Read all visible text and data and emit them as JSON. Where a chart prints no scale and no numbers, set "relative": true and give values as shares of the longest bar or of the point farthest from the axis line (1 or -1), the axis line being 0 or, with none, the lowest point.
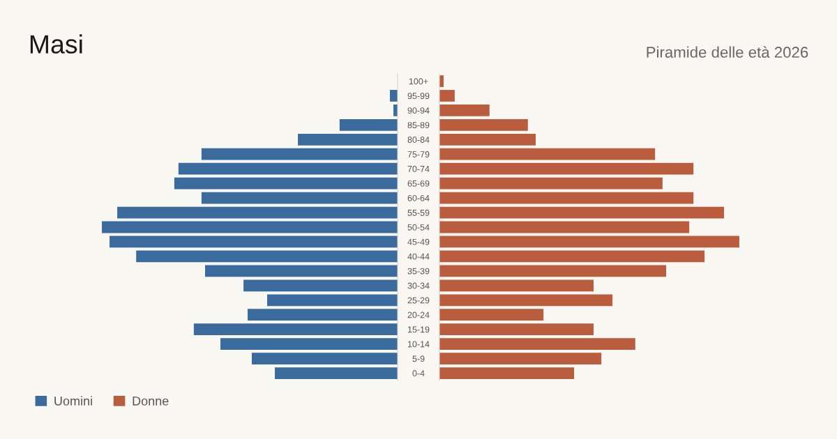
{
  "chart_data": [
    {
      "type": "bar",
      "orientation": "horizontal",
      "relative": true,
      "title": "Masi",
      "legend": "bottom left",
      "categories": [
        "100+",
        "95-99",
        "90-94",
        "85-89",
        "80-84",
        "75-79",
        "70-74",
        "65-69",
        "60-64",
        "55-59",
        "50-54",
        "45-49",
        "40-44",
        "35-39",
        "30-34",
        "25-29",
        "20-24",
        "15-19",
        "10-14",
        "5-9",
        "0-4"
      ],
      "series": [
        {
          "name": "Uomini",
          "color": "#3a6b9c",
          "values": [
            0,
            -0.026,
            -0.014,
            -0.196,
            -0.337,
            -0.663,
            -0.741,
            -0.755,
            -0.663,
            -0.948,
            -1,
            -0.974,
            -0.884,
            -0.651,
            -0.521,
            -0.441,
            -0.507,
            -0.689,
            -0.599,
            -0.493,
            -0.415
          ]
        }
      ]
    },
    {
      "type": "bar",
      "orientation": "horizontal",
      "relative": true,
      "subtitle": "Piramide delle età 2026",
      "legend": "bottom left",
      "categories": [
        null,
        null,
        null,
        null,
        null,
        null,
        null,
        null,
        null,
        null,
        null,
        null,
        null,
        null,
        null,
        null,
        null,
        null,
        null,
        null,
        null
      ],
      "series": [
        {
          "name": "Donne",
          "color": "#b95d3e",
          "values": [
            0.014,
            0.051,
            0.167,
            0.295,
            0.321,
            0.719,
            0.847,
            0.744,
            0.847,
            0.949,
            0.833,
            1,
            0.884,
            0.756,
            0.514,
            0.577,
            0.347,
            0.514,
            0.653,
            0.54,
            0.449
          ]
        }
      ]
    }
  ]
}
